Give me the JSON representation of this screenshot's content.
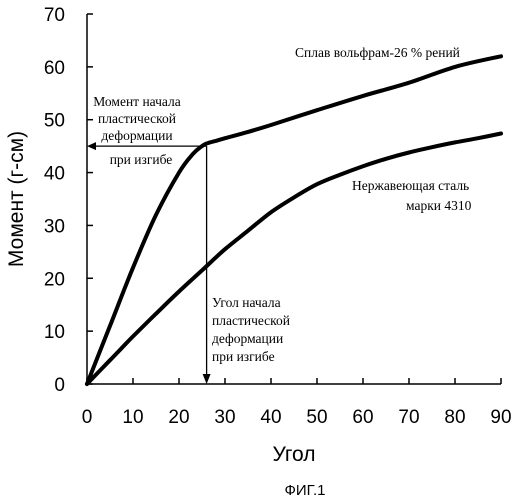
{
  "chart_data": {
    "type": "line",
    "xlabel": "Угол",
    "ylabel": "Момент (г-см)",
    "xlim": [
      0,
      90
    ],
    "ylim": [
      0,
      70
    ],
    "x_ticks": [
      "0",
      "10",
      "20",
      "30",
      "40",
      "50",
      "60",
      "70",
      "80",
      "90"
    ],
    "y_ticks": [
      "0",
      "10",
      "20",
      "30",
      "40",
      "50",
      "60",
      "70"
    ],
    "grid": false,
    "series": [
      {
        "name": "Сплав вольфрам-26 % рений",
        "x": [
          0,
          5,
          10,
          15,
          20,
          23,
          25,
          26,
          28,
          30,
          35,
          40,
          50,
          60,
          70,
          80,
          90
        ],
        "y": [
          0,
          11,
          22,
          32,
          40,
          43.5,
          45,
          45.5,
          46,
          46.5,
          47.7,
          49,
          51.8,
          54.5,
          57,
          60,
          62
        ]
      },
      {
        "name": "Нержавеющая сталь марки 4310",
        "x": [
          0,
          5,
          10,
          15,
          20,
          25,
          30,
          35,
          40,
          45,
          50,
          55,
          60,
          65,
          70,
          75,
          80,
          85,
          90
        ],
        "y": [
          0,
          4.5,
          9,
          13.3,
          17.5,
          21.5,
          25.5,
          29,
          32.5,
          35.3,
          37.8,
          39.6,
          41.2,
          42.6,
          43.8,
          44.8,
          45.7,
          46.5,
          47.4
        ]
      }
    ],
    "annotations": [
      {
        "text_lines": [
          "Момент начала",
          "пластической",
          "деформации",
          "при изгибе"
        ],
        "arrow_to": "y-axis",
        "value": 45
      },
      {
        "text_lines": [
          "Угол начала",
          "пластической",
          "деформации",
          "при изгибе"
        ],
        "arrow_to": "x-axis",
        "value": 26
      }
    ],
    "series_labels": [
      {
        "series": 0,
        "text_lines": [
          "Сплав вольфрам-26 % рений"
        ]
      },
      {
        "series": 1,
        "text_lines": [
          "Нержавеющая сталь",
          "марки 4310"
        ]
      }
    ]
  },
  "caption": "ФИГ.1"
}
